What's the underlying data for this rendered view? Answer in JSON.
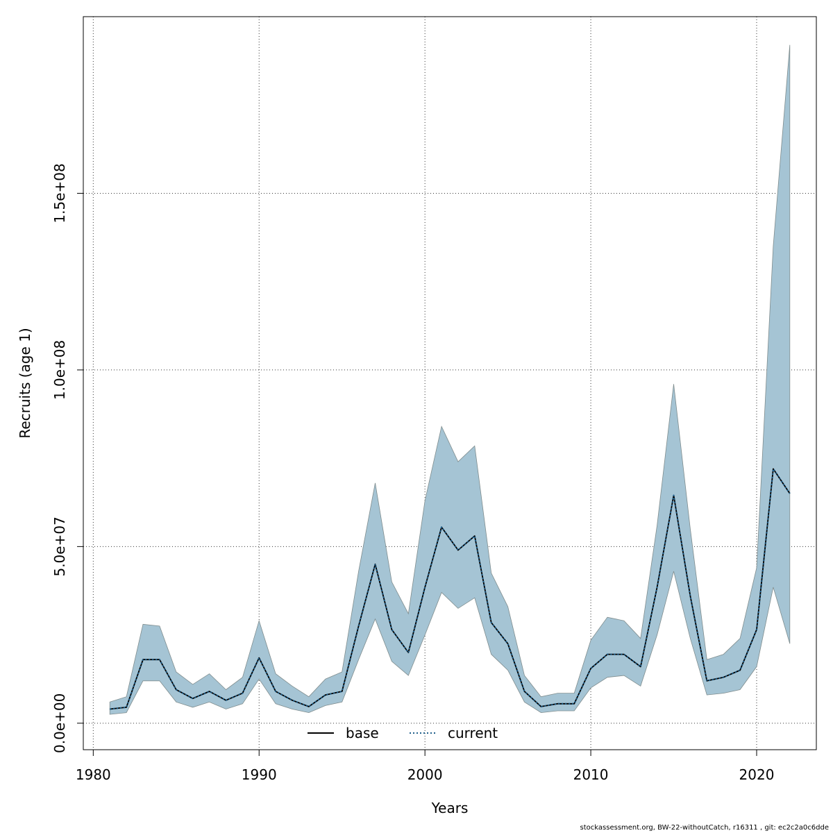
{
  "chart_data": {
    "type": "line",
    "xlabel": "Years",
    "ylabel": "Recruits (age 1)",
    "xlim": [
      1979.4,
      2023.6
    ],
    "ylim": [
      -7500000,
      200000000
    ],
    "xticks": [
      1980,
      1990,
      2000,
      2010,
      2020
    ],
    "xtick_labels": [
      "1980",
      "1990",
      "2000",
      "2010",
      "2020"
    ],
    "yticks": [
      0,
      50000000,
      100000000,
      150000000
    ],
    "ytick_labels": [
      "0.0e+00",
      "5.0e+07",
      "1.0e+08",
      "1.5e+08"
    ],
    "grid": true,
    "legend_position": "bottom",
    "x": [
      1981,
      1982,
      1983,
      1984,
      1985,
      1986,
      1987,
      1988,
      1989,
      1990,
      1991,
      1992,
      1993,
      1994,
      1995,
      1996,
      1997,
      1998,
      1999,
      2000,
      2001,
      2002,
      2003,
      2004,
      2005,
      2006,
      2007,
      2008,
      2009,
      2010,
      2011,
      2012,
      2013,
      2014,
      2015,
      2016,
      2017,
      2018,
      2019,
      2020,
      2021,
      2022
    ],
    "band": {
      "color": "#a5c4d4",
      "lower": [
        2500000,
        3000000,
        12000000,
        12000000,
        6000000,
        4500000,
        6000000,
        4000000,
        5500000,
        12500000,
        5500000,
        4000000,
        3000000,
        5000000,
        6000000,
        18000000,
        29500000,
        17500000,
        13500000,
        25000000,
        37000000,
        32500000,
        35500000,
        19500000,
        15000000,
        6000000,
        3000000,
        3500000,
        3500000,
        10000000,
        13000000,
        13500000,
        10500000,
        25000000,
        43000000,
        24000000,
        8000000,
        8500000,
        9500000,
        16000000,
        38500000,
        22500000
      ],
      "upper": [
        6000000,
        7500000,
        28000000,
        27500000,
        14500000,
        11000000,
        14000000,
        9500000,
        13000000,
        29000000,
        14000000,
        10500000,
        7500000,
        12500000,
        14500000,
        43000000,
        68000000,
        40000000,
        31000000,
        63000000,
        84000000,
        74000000,
        78500000,
        42500000,
        33000000,
        13500000,
        7500000,
        8500000,
        8500000,
        23500000,
        30000000,
        29000000,
        24000000,
        56000000,
        96000000,
        55000000,
        18000000,
        19500000,
        24000000,
        44000000,
        135000000,
        192000000
      ]
    },
    "series": [
      {
        "name": "base",
        "color": "#000000",
        "dash": "solid",
        "values": [
          4000000,
          4500000,
          18000000,
          18000000,
          9500000,
          7000000,
          9000000,
          6500000,
          8500000,
          18500000,
          9000000,
          6500000,
          4700000,
          8000000,
          9000000,
          27500000,
          45000000,
          26500000,
          20000000,
          38500000,
          55500000,
          49000000,
          53000000,
          28500000,
          22500000,
          9000000,
          4700000,
          5500000,
          5500000,
          15500000,
          19500000,
          19500000,
          16000000,
          38500000,
          64500000,
          36000000,
          12000000,
          13000000,
          15000000,
          26500000,
          72000000,
          65000000
        ]
      },
      {
        "name": "current",
        "color": "#1f5f8b",
        "dash": "dotted",
        "values": [
          4000000,
          4500000,
          18000000,
          18000000,
          9500000,
          7000000,
          9000000,
          6500000,
          8500000,
          18500000,
          9000000,
          6500000,
          4700000,
          8000000,
          9000000,
          27500000,
          45000000,
          26500000,
          20000000,
          38500000,
          55500000,
          49000000,
          53000000,
          28500000,
          22500000,
          9000000,
          4700000,
          5500000,
          5500000,
          15500000,
          19500000,
          19500000,
          16000000,
          38500000,
          64500000,
          36000000,
          12000000,
          13000000,
          15000000,
          26500000,
          72000000,
          65000000
        ]
      }
    ]
  },
  "footer_text": "stockassessment.org, BW-22-withoutCatch, r16311 , git: ec2c2a0c6dde"
}
